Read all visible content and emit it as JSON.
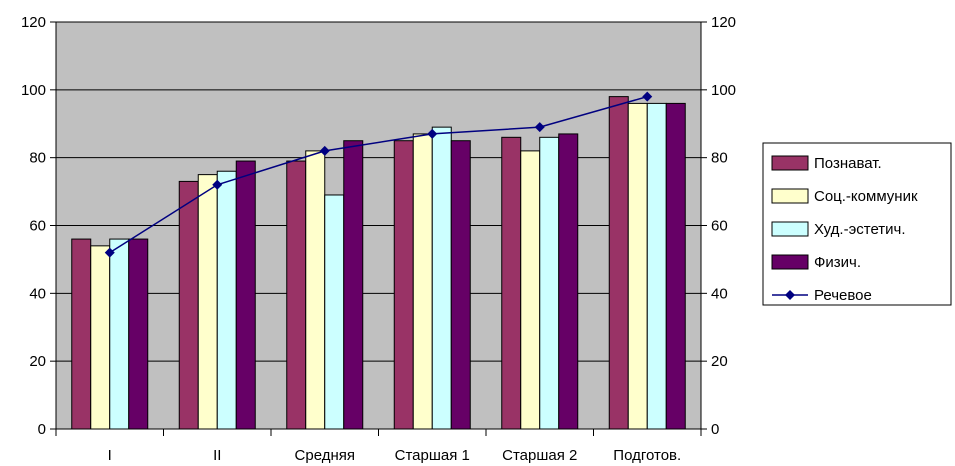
{
  "chart_data": {
    "type": "bar",
    "title": "",
    "xlabel": "",
    "ylabel": "",
    "ylim": [
      0,
      120
    ],
    "yticks": [
      0,
      20,
      40,
      60,
      80,
      100,
      120
    ],
    "y2ticks": [
      0,
      20,
      40,
      60,
      80,
      100,
      120
    ],
    "categories": [
      "I",
      "II",
      "Средняя",
      "Старшая 1",
      "Старшая 2",
      "Подготов."
    ],
    "series": [
      {
        "name": "Познават.",
        "type": "bar",
        "color": "#993366",
        "values": [
          56,
          73,
          79,
          85,
          86,
          98
        ]
      },
      {
        "name": "Соц.-коммуник",
        "type": "bar",
        "color": "#FFFFCC",
        "values": [
          54,
          75,
          82,
          87,
          82,
          96
        ]
      },
      {
        "name": "Худ.-эстетич.",
        "type": "bar",
        "color": "#CCFFFF",
        "values": [
          56,
          76,
          69,
          89,
          86,
          96
        ]
      },
      {
        "name": "Физич.",
        "type": "bar",
        "color": "#660066",
        "values": [
          56,
          79,
          85,
          85,
          87,
          96
        ]
      },
      {
        "name": "Речевое",
        "type": "line",
        "color": "#000080",
        "values": [
          52,
          72,
          82,
          87,
          89,
          98
        ]
      }
    ],
    "plot_background": "#C0C0C0",
    "grid": "horizontal",
    "legend_position": "right"
  }
}
